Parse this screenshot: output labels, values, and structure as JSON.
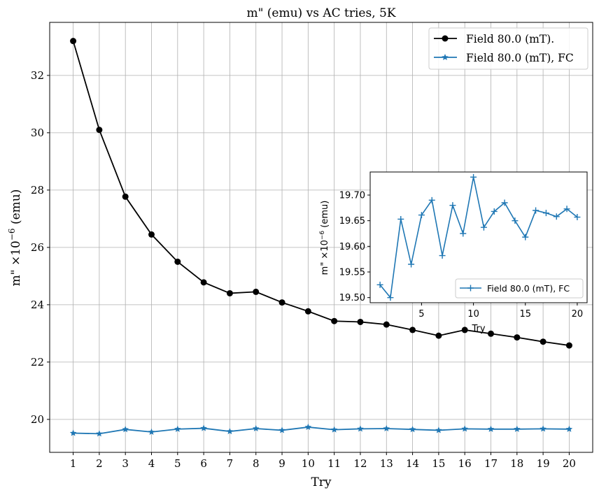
{
  "chart_data": [
    {
      "type": "line",
      "title": "m\" (emu) vs  AC tries, 5K",
      "xlabel": "Try",
      "ylabel_main": "m\" ×10",
      "ylabel_exp": "−6",
      "ylabel_unit": " (emu)",
      "x": [
        1,
        2,
        3,
        4,
        5,
        6,
        7,
        8,
        9,
        10,
        11,
        12,
        13,
        14,
        15,
        16,
        17,
        18,
        19,
        20
      ],
      "xticks": [
        "1",
        "2",
        "3",
        "4",
        "5",
        "6",
        "7",
        "8",
        "9",
        "10",
        "11",
        "12",
        "13",
        "14",
        "15",
        "16",
        "17",
        "18",
        "19",
        "20"
      ],
      "yticks": [
        "20",
        "22",
        "24",
        "26",
        "28",
        "30",
        "32"
      ],
      "xlim": [
        0.1,
        20.9
      ],
      "ylim": [
        18.85,
        33.85
      ],
      "grid": true,
      "legend_position": "top-right",
      "series": [
        {
          "name": "Field 80.0 (mT).",
          "color": "#000000",
          "marker": "circle",
          "values": [
            33.2,
            30.1,
            27.77,
            26.45,
            25.5,
            24.78,
            24.4,
            24.45,
            24.08,
            23.77,
            23.43,
            23.4,
            23.31,
            23.12,
            22.92,
            23.12,
            22.99,
            22.86,
            22.71,
            22.58
          ]
        },
        {
          "name": "Field 80.0 (mT), FC",
          "color": "#1f77b4",
          "marker": "star",
          "values": [
            19.52,
            19.5,
            19.65,
            19.56,
            19.66,
            19.69,
            19.58,
            19.68,
            19.62,
            19.73,
            19.64,
            19.67,
            19.68,
            19.65,
            19.62,
            19.67,
            19.66,
            19.66,
            19.67,
            19.66
          ]
        }
      ]
    },
    {
      "type": "line",
      "title": "",
      "xlabel": "Try",
      "ylabel_main": "m\" ×10",
      "ylabel_exp": "−6",
      "ylabel_unit": " (emu)",
      "x": [
        1,
        2,
        3,
        4,
        5,
        6,
        7,
        8,
        9,
        10,
        11,
        12,
        13,
        14,
        15,
        16,
        17,
        18,
        19,
        20
      ],
      "xticks": [
        "5",
        "10",
        "15",
        "20"
      ],
      "yticks": [
        "19.50",
        "19.55",
        "19.60",
        "19.65",
        "19.70"
      ],
      "xlim": [
        0.05,
        20.95
      ],
      "ylim": [
        19.49,
        19.745
      ],
      "grid": false,
      "legend_position": "lower-right",
      "series": [
        {
          "name": "Field 80.0 (mT), FC",
          "color": "#1f77b4",
          "marker": "plus",
          "values": [
            19.525,
            19.5,
            19.653,
            19.565,
            19.661,
            19.69,
            19.582,
            19.68,
            19.625,
            19.735,
            19.637,
            19.668,
            19.685,
            19.65,
            19.618,
            19.67,
            19.665,
            19.658,
            19.673,
            19.657
          ]
        }
      ]
    }
  ]
}
